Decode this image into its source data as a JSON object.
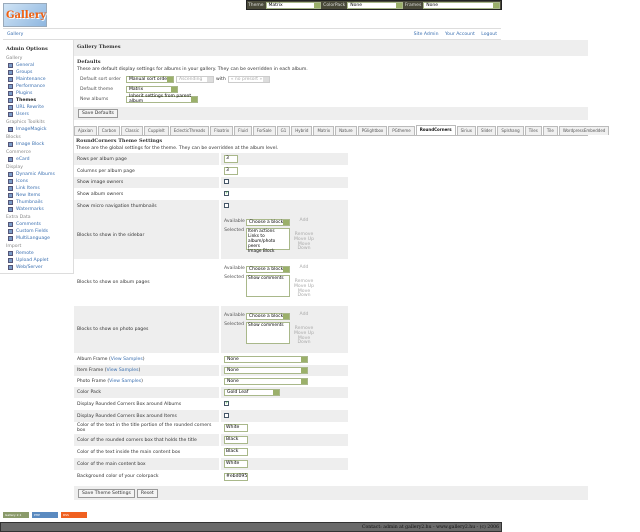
{
  "topbar": {
    "theme_label": "Theme",
    "theme_value": "Matrix",
    "colorpack_label": "ColorPack",
    "colorpack_value": "None",
    "frames_label": "Frames",
    "frames_value": "None"
  },
  "logo_text": "Gallery",
  "breadcrumb": {
    "home": "Gallery",
    "links": [
      "Site Admin",
      "Your Account",
      "Logout"
    ]
  },
  "sidebar": {
    "title": "Admin Options",
    "sections": [
      {
        "heading": "Gallery",
        "items": [
          "General",
          "Groups",
          "Maintenance",
          "Performance",
          "Plugins",
          "Themes",
          "URL Rewrite",
          "Users"
        ]
      },
      {
        "heading": "Graphics Toolkits",
        "items": [
          "ImageMagick"
        ]
      },
      {
        "heading": "Blocks",
        "items": [
          "Image Block"
        ]
      },
      {
        "heading": "Commerce",
        "items": [
          "eCard"
        ]
      },
      {
        "heading": "Display",
        "items": [
          "Dynamic Albums",
          "Icons",
          "Link Items",
          "New Items",
          "Thumbnails",
          "Watermarks"
        ]
      },
      {
        "heading": "Extra Data",
        "items": [
          "Comments",
          "Custom Fields",
          "MultiLanguage"
        ]
      },
      {
        "heading": "Import",
        "items": [
          "Remote",
          "Upload Applet",
          "Web/Server"
        ]
      }
    ],
    "active": "Themes"
  },
  "main": {
    "title": "Gallery Themes",
    "defaults": {
      "heading": "Defaults",
      "description": "These are default display settings for albums in your gallery. They can be overridden in each album.",
      "sort_label": "Default sort order",
      "sort_value": "Manual sort order",
      "direction_value": "Ascending",
      "with_label": "with",
      "preset_value": "« no presort »",
      "theme_label": "Default theme",
      "theme_value": "Matrix",
      "new_albums_label": "New albums",
      "new_albums_value": "Inherit settings from parent album",
      "save_label": "Save Defaults"
    },
    "tabs": [
      "Ajaxian",
      "Carbon",
      "Classic",
      "Cupplelt",
      "EclecticThreads",
      "Floatrix",
      "Fluid",
      "ForSale",
      "G1",
      "Hybrid",
      "Matrix",
      "Nature",
      "PGlightbox",
      "PGtheme",
      "RoundCorners",
      "Siriux",
      "Slider",
      "Splshang",
      "Tiles",
      "Tile",
      "WordpressEmbedded"
    ],
    "active_tab": "RoundCorners",
    "theme": {
      "heading": "RoundCorners Theme Settings",
      "description": "These are the global settings for the theme. They can be overridden at the album level.",
      "rows_label": "Rows per album page",
      "rows_value": "3",
      "cols_label": "Columns per album page",
      "cols_value": "3",
      "image_owners_label": "Show image owners",
      "image_owners": false,
      "album_owners_label": "Show album owners",
      "album_owners": true,
      "micro_label": "Show micro navigation thumbnails",
      "micro": false,
      "available_label": "Available",
      "selected_label": "Selected",
      "choose": "Choose a block",
      "add": "Add",
      "remove": "Remove",
      "move_up": "Move Up",
      "move_down": "Move Down",
      "sidebar_blocks_label": "Blocks to show in the sidebar",
      "sidebar_blocks": "Item actions\nLinks to album/photo peers\nImage Block",
      "album_blocks_label": "Blocks to show on album pages",
      "album_blocks": "Show comments",
      "photo_blocks_label": "Blocks to show on photo pages",
      "photo_blocks": "Show comments",
      "view_samples": "View Samples",
      "album_frame_label": "Album Frame",
      "album_frame": "None",
      "item_frame_label": "Item Frame",
      "item_frame": "None",
      "photo_frame_label": "Photo Frame",
      "photo_frame": "None",
      "color_pack_label": "Color Pack",
      "color_pack": "Gold Leaf",
      "rc_albums_label": "Display Rounded Corners Box around Albums",
      "rc_albums": true,
      "rc_items_label": "Display Rounded Corners Box around Items",
      "rc_items": false,
      "title_text_label": "Color of the text in the title portion of the rounded corners box",
      "title_text": "White",
      "title_box_label": "Color of the rounded corners box that holds the title",
      "title_box": "Black",
      "content_text_label": "Color of the text inside the main content box",
      "content_text": "Black",
      "content_box_label": "Color of the main content box",
      "content_box": "White",
      "bg_label": "Background color of your colorpack",
      "bg": "#ebd095",
      "save_label": "Save Theme Settings",
      "reset_label": "Reset"
    }
  },
  "badges": [
    "Gallery 2.1",
    "PHP",
    "RSS"
  ],
  "footer": "Contact: admin at gallery2.hu - www.gallery2.hu - (c) 2006"
}
